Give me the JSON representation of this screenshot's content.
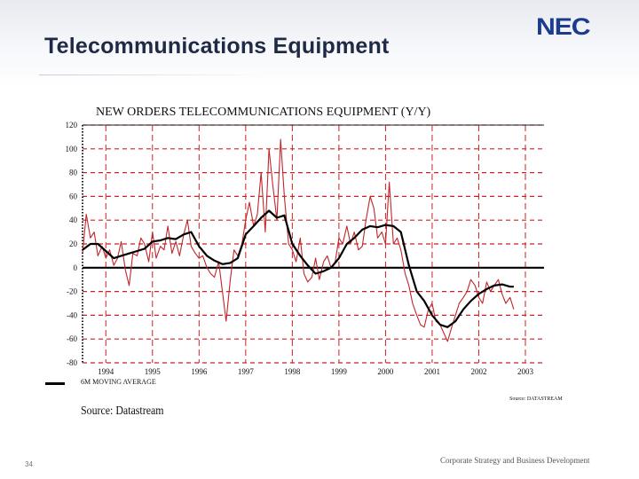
{
  "slide": {
    "title": "Telecommunications Equipment",
    "logo": "NEC",
    "page_number": "34",
    "footer": "Corporate Strategy and Business Development"
  },
  "chart_data": {
    "type": "line",
    "title": "NEW ORDERS TELECOMMUNICATIONS EQUIPMENT (Y/Y)",
    "xlabel": "",
    "ylabel": "",
    "ylim": [
      -80,
      120
    ],
    "xlim": [
      1993.5,
      2003.4
    ],
    "yticks": [
      120,
      100,
      80,
      60,
      40,
      20,
      0,
      -20,
      -40,
      -60,
      -80
    ],
    "xticks": [
      {
        "label": "1994",
        "x": 1994
      },
      {
        "label": "1995",
        "x": 1995
      },
      {
        "label": "1996",
        "x": 1996
      },
      {
        "label": "1997",
        "x": 1997
      },
      {
        "label": "1998",
        "x": 1998
      },
      {
        "label": "1999",
        "x": 1999
      },
      {
        "label": "2000",
        "x": 2000
      },
      {
        "label": "2001",
        "x": 2001
      },
      {
        "label": "2002",
        "x": 2002
      },
      {
        "label": "2003",
        "x": 2003
      }
    ],
    "grid": true,
    "colors": {
      "monthly": "#c0262b",
      "moving_average": "#000000",
      "grid": "#cc2222"
    },
    "legend": "6M MOVING AVERAGE",
    "source_left": "Source: Datastream",
    "source_right": "Source: DATASTREAM",
    "series": [
      {
        "key": "monthly",
        "x": [
          1993.5,
          1993.58,
          1993.67,
          1993.75,
          1993.83,
          1993.92,
          1994.0,
          1994.08,
          1994.17,
          1994.25,
          1994.33,
          1994.42,
          1994.5,
          1994.58,
          1994.67,
          1994.75,
          1994.83,
          1994.92,
          1995.0,
          1995.08,
          1995.17,
          1995.25,
          1995.33,
          1995.42,
          1995.5,
          1995.58,
          1995.67,
          1995.75,
          1995.83,
          1995.92,
          1996.0,
          1996.08,
          1996.17,
          1996.25,
          1996.33,
          1996.42,
          1996.5,
          1996.58,
          1996.67,
          1996.75,
          1996.83,
          1996.92,
          1997.0,
          1997.08,
          1997.17,
          1997.25,
          1997.33,
          1997.42,
          1997.5,
          1997.58,
          1997.67,
          1997.75,
          1997.83,
          1997.92,
          1998.0,
          1998.08,
          1998.17,
          1998.25,
          1998.33,
          1998.42,
          1998.5,
          1998.58,
          1998.67,
          1998.75,
          1998.83,
          1998.92,
          1999.0,
          1999.08,
          1999.17,
          1999.25,
          1999.33,
          1999.42,
          1999.5,
          1999.58,
          1999.67,
          1999.75,
          1999.83,
          1999.92,
          2000.0,
          2000.08,
          2000.17,
          2000.25,
          2000.33,
          2000.42,
          2000.5,
          2000.58,
          2000.67,
          2000.75,
          2000.83,
          2000.92,
          2001.0,
          2001.08,
          2001.17,
          2001.25,
          2001.33,
          2001.42,
          2001.5,
          2001.58,
          2001.67,
          2001.75,
          2001.83,
          2001.92,
          2002.0,
          2002.08,
          2002.17,
          2002.25,
          2002.33,
          2002.42,
          2002.5,
          2002.58,
          2002.67,
          2002.75
        ],
        "values": [
          12,
          45,
          25,
          30,
          10,
          18,
          8,
          15,
          2,
          8,
          22,
          -2,
          -15,
          12,
          10,
          25,
          20,
          5,
          30,
          8,
          18,
          15,
          35,
          12,
          22,
          10,
          28,
          40,
          18,
          12,
          8,
          10,
          0,
          -5,
          -8,
          5,
          -20,
          -45,
          -10,
          15,
          10,
          20,
          40,
          55,
          35,
          45,
          80,
          30,
          100,
          70,
          40,
          108,
          60,
          20,
          15,
          5,
          25,
          -5,
          -12,
          -8,
          8,
          -10,
          5,
          10,
          0,
          5,
          25,
          20,
          35,
          20,
          30,
          15,
          18,
          40,
          60,
          50,
          25,
          30,
          20,
          72,
          20,
          25,
          15,
          -5,
          -15,
          -30,
          -40,
          -48,
          -50,
          -35,
          -30,
          -45,
          -48,
          -55,
          -62,
          -50,
          -40,
          -30,
          -25,
          -20,
          -10,
          -15,
          -25,
          -30,
          -12,
          -20,
          -15,
          -10,
          -22,
          -30,
          -25,
          -35
        ]
      },
      {
        "key": "moving_average",
        "x": [
          1993.5,
          1993.67,
          1993.83,
          1994.0,
          1994.17,
          1994.33,
          1994.5,
          1994.67,
          1994.83,
          1995.0,
          1995.17,
          1995.33,
          1995.5,
          1995.67,
          1995.83,
          1996.0,
          1996.17,
          1996.33,
          1996.5,
          1996.67,
          1996.83,
          1997.0,
          1997.17,
          1997.33,
          1997.5,
          1997.67,
          1997.83,
          1998.0,
          1998.17,
          1998.33,
          1998.5,
          1998.67,
          1998.83,
          1999.0,
          1999.17,
          1999.33,
          1999.5,
          1999.67,
          1999.83,
          2000.0,
          2000.17,
          2000.33,
          2000.5,
          2000.67,
          2000.83,
          2001.0,
          2001.17,
          2001.33,
          2001.5,
          2001.67,
          2001.83,
          2002.0,
          2002.17,
          2002.33,
          2002.5,
          2002.67,
          2002.75
        ],
        "values": [
          15,
          20,
          20,
          14,
          8,
          10,
          12,
          14,
          16,
          22,
          23,
          25,
          24,
          28,
          30,
          18,
          10,
          6,
          3,
          4,
          8,
          28,
          35,
          42,
          48,
          42,
          44,
          20,
          10,
          2,
          -5,
          -3,
          0,
          8,
          20,
          25,
          32,
          35,
          34,
          36,
          35,
          30,
          2,
          -20,
          -28,
          -40,
          -48,
          -50,
          -45,
          -35,
          -28,
          -22,
          -18,
          -15,
          -14,
          -16,
          -16
        ]
      }
    ]
  }
}
